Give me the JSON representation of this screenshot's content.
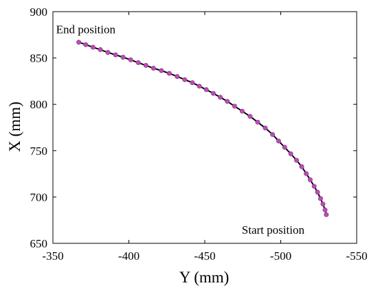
{
  "chart_data": {
    "type": "line",
    "xlabel": "Y (mm)",
    "ylabel": "X (mm)",
    "xlim": [
      -350,
      -550
    ],
    "ylim": [
      650,
      900
    ],
    "x_reversed": true,
    "xticks": [
      -350,
      -400,
      -450,
      -500,
      -550
    ],
    "xtick_labels": [
      "-350",
      "-400",
      "-450",
      "-500",
      "-550"
    ],
    "yticks": [
      650,
      700,
      750,
      800,
      850,
      900
    ],
    "ytick_labels": [
      "650",
      "700",
      "750",
      "800",
      "850",
      "900"
    ],
    "grid": false,
    "colors": {
      "line": "#000000",
      "marker": "#b84eb4",
      "marker_edge": "#8f2f8f"
    },
    "annotations": [
      {
        "text": "End position",
        "x": -367,
        "y": 867
      },
      {
        "text": "Start position",
        "x": -530,
        "y": 681
      }
    ],
    "series": [
      {
        "x": [
          -367.0,
          -371.6,
          -376.4,
          -381.2,
          -386.2,
          -391.2,
          -396.2,
          -401.2,
          -406.2,
          -411.2,
          -416.2,
          -421.4,
          -426.6,
          -431.8,
          -436.8,
          -441.8,
          -446.4,
          -451.0,
          -455.6,
          -460.2,
          -464.8,
          -469.6,
          -474.6,
          -479.8,
          -484.8,
          -489.8,
          -494.6,
          -498.6,
          -502.6,
          -506.6,
          -510.4,
          -513.8,
          -516.8,
          -519.4,
          -522.0,
          -524.2,
          -526.2,
          -527.8,
          -529.2,
          -530.0
        ],
        "y": [
          867.0,
          864.4,
          861.6,
          859.0,
          856.0,
          853.4,
          850.8,
          848.0,
          845.0,
          842.0,
          839.0,
          836.4,
          833.4,
          830.0,
          826.6,
          823.4,
          819.6,
          815.8,
          811.8,
          807.6,
          803.2,
          798.0,
          792.6,
          787.0,
          780.8,
          774.4,
          767.4,
          760.4,
          753.6,
          746.6,
          739.6,
          732.8,
          725.2,
          718.6,
          711.6,
          705.2,
          698.4,
          692.4,
          686.0,
          681.0
        ]
      }
    ]
  }
}
